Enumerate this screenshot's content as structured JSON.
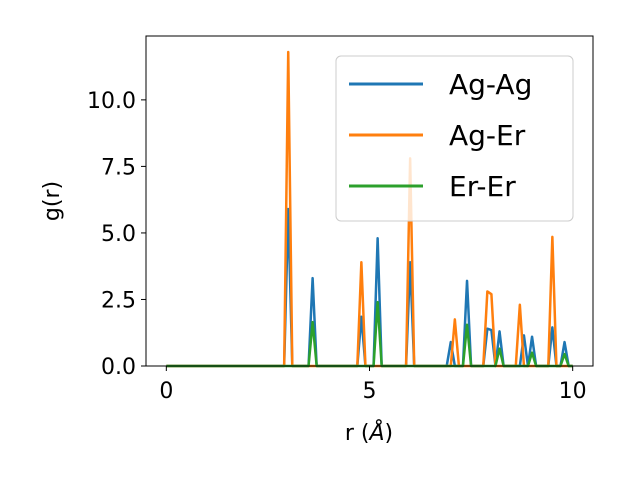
{
  "chart_data": {
    "type": "line",
    "title": "",
    "xlabel": "r (",
    "xlabel_unit": "Å",
    "xlabel_close": ")",
    "ylabel": "g(r)",
    "xlim": [
      -0.5,
      10.5
    ],
    "ylim": [
      0,
      12.4
    ],
    "xticks": [
      0,
      5,
      10
    ],
    "xtick_labels": [
      "0",
      "5",
      "10"
    ],
    "yticks": [
      0,
      2.5,
      5,
      7.5,
      10
    ],
    "ytick_labels": [
      "0.0",
      "2.5",
      "5.0",
      "7.5",
      "10.0"
    ],
    "grid": false,
    "legend_placement": "top-right",
    "series": [
      {
        "name": "Ag-Ag",
        "color": "#1f77b4",
        "points": [
          [
            0,
            0
          ],
          [
            2.9,
            0
          ],
          [
            3.0,
            5.9
          ],
          [
            3.1,
            0
          ],
          [
            3.5,
            0
          ],
          [
            3.6,
            3.3
          ],
          [
            3.7,
            0
          ],
          [
            4.7,
            0
          ],
          [
            4.8,
            1.85
          ],
          [
            4.9,
            0
          ],
          [
            5.1,
            0
          ],
          [
            5.2,
            4.8
          ],
          [
            5.3,
            0
          ],
          [
            5.9,
            0
          ],
          [
            6.0,
            3.9
          ],
          [
            6.1,
            0
          ],
          [
            6.9,
            0
          ],
          [
            7.0,
            0.9
          ],
          [
            7.1,
            0
          ],
          [
            7.3,
            0
          ],
          [
            7.4,
            3.2
          ],
          [
            7.5,
            0
          ],
          [
            7.8,
            0
          ],
          [
            7.9,
            1.4
          ],
          [
            8.0,
            1.35
          ],
          [
            8.1,
            0
          ],
          [
            8.2,
            1.3
          ],
          [
            8.3,
            0
          ],
          [
            8.7,
            0
          ],
          [
            8.8,
            1.15
          ],
          [
            8.9,
            0
          ],
          [
            9.0,
            1.1
          ],
          [
            9.1,
            0
          ],
          [
            9.4,
            0
          ],
          [
            9.5,
            1.45
          ],
          [
            9.6,
            0
          ],
          [
            9.7,
            0
          ],
          [
            9.8,
            0.9
          ],
          [
            9.9,
            0
          ],
          [
            10.0,
            0
          ]
        ]
      },
      {
        "name": "Ag-Er",
        "color": "#ff7f0e",
        "points": [
          [
            0,
            0
          ],
          [
            2.9,
            0
          ],
          [
            3.0,
            11.8
          ],
          [
            3.1,
            0
          ],
          [
            4.7,
            0
          ],
          [
            4.8,
            3.9
          ],
          [
            4.9,
            0
          ],
          [
            5.9,
            0
          ],
          [
            6.0,
            7.8
          ],
          [
            6.1,
            0
          ],
          [
            7.0,
            0
          ],
          [
            7.1,
            1.75
          ],
          [
            7.2,
            0
          ],
          [
            7.8,
            0
          ],
          [
            7.9,
            2.8
          ],
          [
            8.0,
            2.7
          ],
          [
            8.1,
            0
          ],
          [
            8.6,
            0
          ],
          [
            8.7,
            2.3
          ],
          [
            8.8,
            0
          ],
          [
            9.4,
            0
          ],
          [
            9.5,
            4.85
          ],
          [
            9.6,
            0
          ],
          [
            10.0,
            0
          ]
        ]
      },
      {
        "name": "Er-Er",
        "color": "#2ca02c",
        "points": [
          [
            0,
            0
          ],
          [
            3.5,
            0
          ],
          [
            3.6,
            1.65
          ],
          [
            3.7,
            0
          ],
          [
            5.1,
            0
          ],
          [
            5.2,
            2.4
          ],
          [
            5.3,
            0
          ],
          [
            7.3,
            0
          ],
          [
            7.4,
            1.55
          ],
          [
            7.5,
            0
          ],
          [
            8.1,
            0
          ],
          [
            8.2,
            0.65
          ],
          [
            8.3,
            0
          ],
          [
            8.9,
            0
          ],
          [
            9.0,
            0.5
          ],
          [
            9.1,
            0
          ],
          [
            9.7,
            0
          ],
          [
            9.8,
            0.45
          ],
          [
            9.9,
            0
          ],
          [
            10.0,
            0
          ]
        ]
      }
    ]
  }
}
